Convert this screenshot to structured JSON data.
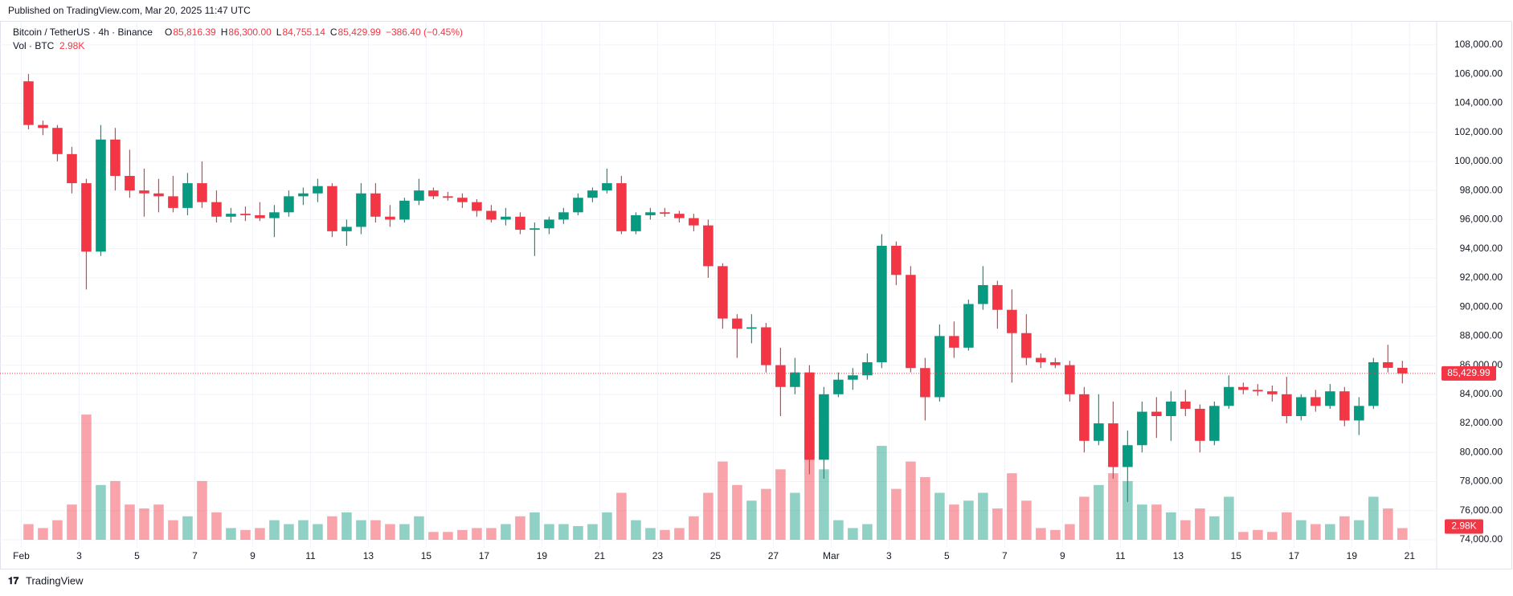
{
  "published": "Published on TradingView.com, Mar 20, 2025 11:47 UTC",
  "brand": "TradingView",
  "chart_data": {
    "type": "candlestick",
    "title": "Bitcoin / TetherUS · 4h · Binance",
    "ohlc_legend": [
      {
        "label": "O",
        "value": "85,816.39"
      },
      {
        "label": "H",
        "value": "86,300.00"
      },
      {
        "label": "L",
        "value": "84,755.14"
      },
      {
        "label": "C",
        "value": "85,429.99"
      }
    ],
    "change": "−386.40 (−0.45%)",
    "volume_title": "Vol · BTC",
    "last_volume_label": "2.98K",
    "last_price_label": "85,429.99",
    "up_color": "#089981",
    "down_color": "#f23645",
    "open": [
      105500,
      102500,
      102300,
      100500,
      98500,
      93800,
      101500,
      99000,
      98000,
      97800,
      97600,
      96800,
      98500,
      97200,
      96200,
      96400,
      96300,
      96100,
      96500,
      97600,
      97800,
      98300,
      95200,
      95500,
      97800,
      96200,
      96000,
      97300,
      98000,
      97600,
      97500,
      97200,
      96600,
      96000,
      96200,
      95300,
      95400,
      96000,
      96500,
      97500,
      98000,
      98500,
      95200,
      96300,
      96500,
      96400,
      96100,
      95600,
      92800,
      89200,
      88500,
      88600,
      86000,
      84500,
      85500,
      79500,
      84000,
      85000,
      85300,
      86200,
      94200,
      92200,
      85800,
      83800,
      88000,
      87200,
      90200,
      91500,
      89800,
      88200,
      86500,
      86200,
      86000,
      84000,
      80800,
      82000,
      79000,
      80500,
      82800,
      82500,
      83500,
      83000,
      80800,
      83200,
      84500,
      84300,
      84200,
      84000,
      82500,
      83800,
      83200,
      84200,
      82200,
      83200,
      86200,
      85816.39
    ],
    "high": [
      106000,
      102800,
      102500,
      101000,
      98800,
      102500,
      102300,
      100800,
      99500,
      98800,
      99000,
      99200,
      100000,
      98000,
      96800,
      96900,
      97200,
      97000,
      98000,
      98200,
      98800,
      98500,
      96000,
      98500,
      98500,
      97000,
      97500,
      98800,
      98200,
      97900,
      97800,
      97400,
      97000,
      96800,
      96500,
      95800,
      96200,
      96800,
      97800,
      98200,
      99500,
      99000,
      96500,
      96800,
      96800,
      96600,
      96400,
      96000,
      93000,
      89500,
      89500,
      88900,
      87200,
      86500,
      86000,
      84500,
      85500,
      85800,
      86800,
      95000,
      94500,
      92800,
      86500,
      88800,
      89000,
      90500,
      92800,
      91800,
      91200,
      89500,
      86800,
      86500,
      86300,
      84500,
      84000,
      83500,
      81500,
      83500,
      83800,
      84200,
      84300,
      83300,
      83500,
      85300,
      84800,
      84700,
      84600,
      85200,
      84000,
      84300,
      84700,
      84500,
      83800,
      86500,
      87400,
      86300
    ],
    "low": [
      102200,
      101800,
      100000,
      97800,
      91200,
      93500,
      98000,
      97500,
      96200,
      96500,
      96500,
      96300,
      96800,
      95800,
      95800,
      95900,
      95900,
      94800,
      96200,
      97000,
      97200,
      94800,
      94200,
      95000,
      95800,
      95500,
      95800,
      97000,
      97400,
      97300,
      96800,
      96200,
      95800,
      95600,
      95000,
      93500,
      95000,
      95700,
      96300,
      97200,
      97800,
      95000,
      95000,
      96000,
      96200,
      95800,
      95200,
      92000,
      88500,
      86500,
      87500,
      85500,
      82500,
      84000,
      78500,
      78200,
      83800,
      84300,
      85000,
      85800,
      91500,
      85500,
      82200,
      83500,
      86500,
      87000,
      89800,
      88500,
      84800,
      86000,
      85800,
      85800,
      83500,
      80000,
      80500,
      78200,
      76600,
      80000,
      81000,
      80800,
      82500,
      80000,
      80500,
      83000,
      84000,
      83900,
      83500,
      82000,
      82200,
      82800,
      83000,
      81800,
      81200,
      83000,
      85500,
      84755.14
    ],
    "close": [
      102500,
      102300,
      100500,
      98500,
      93800,
      101500,
      99000,
      98000,
      97800,
      97600,
      96800,
      98500,
      97200,
      96200,
      96400,
      96300,
      96100,
      96500,
      97600,
      97800,
      98300,
      95200,
      95500,
      97800,
      96200,
      96000,
      97300,
      98000,
      97600,
      97500,
      97200,
      96600,
      96000,
      96200,
      95300,
      95400,
      96000,
      96500,
      97500,
      98000,
      98500,
      95200,
      96300,
      96500,
      96400,
      96100,
      95600,
      92800,
      89200,
      88500,
      88600,
      86000,
      84500,
      85500,
      79500,
      84000,
      85000,
      85300,
      86200,
      94200,
      92200,
      85800,
      83800,
      88000,
      87200,
      90200,
      91500,
      89800,
      88200,
      86500,
      86200,
      86000,
      84000,
      80800,
      82000,
      79000,
      80500,
      82800,
      82500,
      83500,
      83000,
      80800,
      83200,
      84500,
      84300,
      84200,
      84000,
      82500,
      83800,
      83200,
      84200,
      82200,
      83200,
      86200,
      85816.39,
      85429.99
    ],
    "volume": [
      4000,
      3000,
      5000,
      9000,
      32000,
      14000,
      15000,
      9000,
      8000,
      9000,
      5000,
      6000,
      15000,
      7000,
      3000,
      2500,
      3000,
      5000,
      4000,
      5000,
      4000,
      6000,
      7000,
      5000,
      5000,
      4000,
      4000,
      6000,
      2000,
      2000,
      2500,
      3000,
      3000,
      4000,
      6000,
      7000,
      4000,
      4000,
      3500,
      4000,
      7000,
      12000,
      5000,
      3000,
      2500,
      3000,
      6000,
      12000,
      20000,
      14000,
      10000,
      13000,
      18000,
      12000,
      28000,
      18000,
      5000,
      3000,
      4000,
      24000,
      13000,
      20000,
      16000,
      12000,
      9000,
      10000,
      12000,
      8000,
      17000,
      10000,
      3000,
      2500,
      4000,
      11000,
      14000,
      17000,
      15000,
      9000,
      9000,
      7000,
      5000,
      8000,
      6000,
      11000,
      2000,
      2500,
      2000,
      7000,
      5000,
      4000,
      4000,
      6000,
      5000,
      11000,
      8000,
      2980
    ],
    "volume_lim": [
      0,
      39000
    ],
    "xlim": [
      -1.47,
      97.87
    ],
    "xticks": [
      {
        "value": 0,
        "label": "Feb"
      },
      {
        "value": 4,
        "label": "3"
      },
      {
        "value": 8,
        "label": "5"
      },
      {
        "value": 12,
        "label": "7"
      },
      {
        "value": 16,
        "label": "9"
      },
      {
        "value": 20,
        "label": "11"
      },
      {
        "value": 24,
        "label": "13"
      },
      {
        "value": 28,
        "label": "15"
      },
      {
        "value": 32,
        "label": "17"
      },
      {
        "value": 36,
        "label": "19"
      },
      {
        "value": 40,
        "label": "21"
      },
      {
        "value": 44,
        "label": "23"
      },
      {
        "value": 48,
        "label": "25"
      },
      {
        "value": 52,
        "label": "27"
      },
      {
        "value": 56,
        "label": "Mar"
      },
      {
        "value": 60,
        "label": "3"
      },
      {
        "value": 64,
        "label": "5"
      },
      {
        "value": 68,
        "label": "7"
      },
      {
        "value": 72,
        "label": "9"
      },
      {
        "value": 76,
        "label": "11"
      },
      {
        "value": 80,
        "label": "13"
      },
      {
        "value": 84,
        "label": "15"
      },
      {
        "value": 88,
        "label": "17"
      },
      {
        "value": 92,
        "label": "19"
      },
      {
        "value": 96,
        "label": "21"
      }
    ],
    "ylim": [
      73450,
      109100
    ],
    "yticks": [
      {
        "value": 74000,
        "label": "74,000.00"
      },
      {
        "value": 76000,
        "label": "76,000.00"
      },
      {
        "value": 78000,
        "label": "78,000.00"
      },
      {
        "value": 80000,
        "label": "80,000.00"
      },
      {
        "value": 82000,
        "label": "82,000.00"
      },
      {
        "value": 84000,
        "label": "84,000.00"
      },
      {
        "value": 86000,
        "label": "86,000.00"
      },
      {
        "value": 88000,
        "label": "88,000.00"
      },
      {
        "value": 90000,
        "label": "90,000.00"
      },
      {
        "value": 92000,
        "label": "92,000.00"
      },
      {
        "value": 94000,
        "label": "94,000.00"
      },
      {
        "value": 96000,
        "label": "96,000.00"
      },
      {
        "value": 98000,
        "label": "98,000.00"
      },
      {
        "value": 100000,
        "label": "100,000.00"
      },
      {
        "value": 102000,
        "label": "102,000.00"
      },
      {
        "value": 104000,
        "label": "104,000.00"
      },
      {
        "value": 106000,
        "label": "106,000.00"
      },
      {
        "value": 108000,
        "label": "108,000.00"
      }
    ],
    "grid": true
  }
}
